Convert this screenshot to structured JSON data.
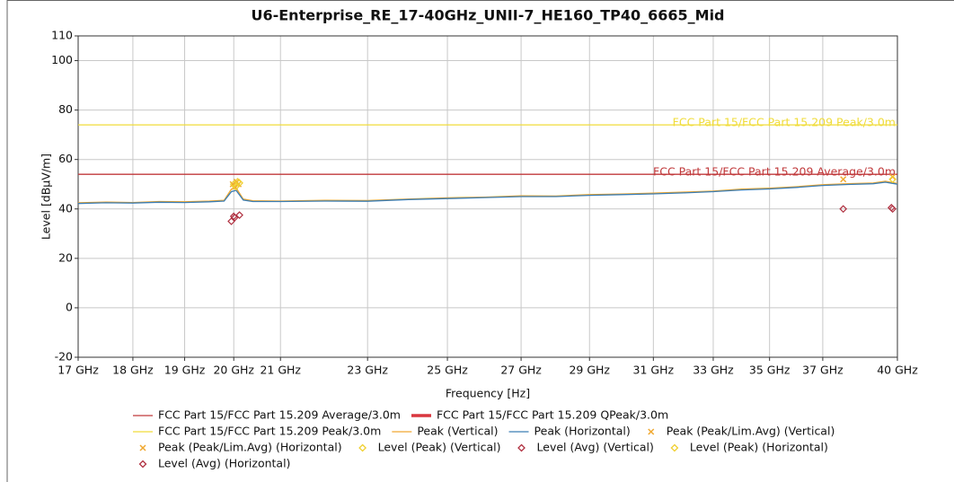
{
  "chart_data": {
    "type": "line",
    "title": "U6-Enterprise_RE_17-40GHz_UNII-7_HE160_TP40_6665_Mid",
    "xlabel": "Frequency [Hz]",
    "ylabel": "Level [dBµV/m]",
    "xscale": "log",
    "grid": true,
    "xlim": [
      17000000000.0,
      40000000000.0
    ],
    "ylim": [
      -20,
      110
    ],
    "xticks": [
      {
        "value": 17000000000.0,
        "label": "17 GHz"
      },
      {
        "value": 18000000000.0,
        "label": "18 GHz"
      },
      {
        "value": 19000000000.0,
        "label": "19 GHz"
      },
      {
        "value": 20000000000.0,
        "label": "20 GHz"
      },
      {
        "value": 21000000000.0,
        "label": "21 GHz"
      },
      {
        "value": 23000000000.0,
        "label": "23 GHz"
      },
      {
        "value": 25000000000.0,
        "label": "25 GHz"
      },
      {
        "value": 27000000000.0,
        "label": "27 GHz"
      },
      {
        "value": 29000000000.0,
        "label": "29 GHz"
      },
      {
        "value": 31000000000.0,
        "label": "31 GHz"
      },
      {
        "value": 33000000000.0,
        "label": "33 GHz"
      },
      {
        "value": 35000000000.0,
        "label": "35 GHz"
      },
      {
        "value": 37000000000.0,
        "label": "37 GHz"
      },
      {
        "value": 40000000000.0,
        "label": "40 GHz"
      }
    ],
    "yticks": [
      -20,
      0,
      20,
      40,
      60,
      80,
      100,
      110
    ],
    "series": [
      {
        "name": "FCC Part 15/FCC Part 15.209 Average/3.0m",
        "color": "#c0393b",
        "style": "limit",
        "x": [
          17000000000.0,
          40000000000.0
        ],
        "values": [
          54,
          54
        ]
      },
      {
        "name": "FCC Part 15/FCC Part 15.209 QPeak/3.0m",
        "color": "#d9363e",
        "style": "thick",
        "x": [],
        "values": []
      },
      {
        "name": "FCC Part 15/FCC Part 15.209 Peak/3.0m",
        "color": "#f0dc3a",
        "style": "limit",
        "x": [
          17000000000.0,
          40000000000.0
        ],
        "values": [
          74,
          74
        ]
      },
      {
        "name": "Peak (Vertical)",
        "color": "#f0a830",
        "style": "line",
        "x": [
          17000000000.0,
          17500000000.0,
          18000000000.0,
          18500000000.0,
          19000000000.0,
          19500000000.0,
          19800000000.0,
          19950000000.0,
          20050000000.0,
          20200000000.0,
          20400000000.0,
          21000000000.0,
          22000000000.0,
          23000000000.0,
          24000000000.0,
          25000000000.0,
          26000000000.0,
          27000000000.0,
          28000000000.0,
          29000000000.0,
          30000000000.0,
          31000000000.0,
          32000000000.0,
          33000000000.0,
          34000000000.0,
          35000000000.0,
          36000000000.0,
          37000000000.0,
          38000000000.0,
          39000000000.0,
          39500000000.0,
          40000000000.0
        ],
        "values": [
          42.5,
          42.8,
          42.6,
          43,
          42.9,
          43.2,
          43.5,
          48,
          48.5,
          44,
          43.3,
          43.2,
          43.5,
          43.4,
          44,
          44.5,
          44.8,
          45.3,
          45.2,
          45.8,
          46,
          46.4,
          46.8,
          47.2,
          48,
          48.4,
          49,
          49.8,
          50.2,
          50.5,
          51.2,
          50.3
        ]
      },
      {
        "name": "Peak (Horizontal)",
        "color": "#3a7db5",
        "style": "line",
        "x": [
          17000000000.0,
          17500000000.0,
          18000000000.0,
          18500000000.0,
          19000000000.0,
          19500000000.0,
          19800000000.0,
          19950000000.0,
          20050000000.0,
          20200000000.0,
          20400000000.0,
          21000000000.0,
          22000000000.0,
          23000000000.0,
          24000000000.0,
          25000000000.0,
          26000000000.0,
          27000000000.0,
          28000000000.0,
          29000000000.0,
          30000000000.0,
          31000000000.0,
          32000000000.0,
          33000000000.0,
          34000000000.0,
          35000000000.0,
          36000000000.0,
          37000000000.0,
          38000000000.0,
          39000000000.0,
          39500000000.0,
          40000000000.0
        ],
        "values": [
          42.2,
          42.5,
          42.4,
          42.7,
          42.6,
          42.9,
          43.2,
          47,
          47.5,
          43.6,
          43,
          43,
          43.2,
          43.1,
          43.8,
          44.2,
          44.6,
          45,
          45,
          45.5,
          45.8,
          46.1,
          46.5,
          47,
          47.7,
          48.1,
          48.7,
          49.5,
          49.9,
          50.2,
          50.8,
          50
        ]
      },
      {
        "name": "Peak (Peak/Lim.Avg) (Vertical)",
        "color": "#f0a830",
        "style": "x",
        "x": [
          19980000000.0,
          20060000000.0,
          37800000000.0,
          39800000000.0
        ],
        "values": [
          50,
          51,
          52,
          53
        ]
      },
      {
        "name": "Peak (Peak/Lim.Avg) (Horizontal)",
        "color": "#f0a830",
        "style": "x",
        "x": [
          20020000000.0,
          20100000000.0
        ],
        "values": [
          49,
          50
        ]
      },
      {
        "name": "Level (Peak) (Vertical)",
        "color": "#f0d030",
        "style": "diamond",
        "x": [
          20000000000.0,
          20080000000.0,
          39800000000.0
        ],
        "values": [
          50,
          51,
          52
        ]
      },
      {
        "name": "Level (Avg) (Vertical)",
        "color": "#b03040",
        "style": "diamond",
        "x": [
          19950000000.0,
          20020000000.0,
          37800000000.0,
          39750000000.0
        ],
        "values": [
          35,
          36.5,
          40,
          40.5
        ]
      },
      {
        "name": "Level (Peak) (Horizontal)",
        "color": "#f0d030",
        "style": "diamond",
        "x": [
          20040000000.0,
          20120000000.0
        ],
        "values": [
          49,
          50.5
        ]
      },
      {
        "name": "Level (Avg) (Horizontal)",
        "color": "#b03040",
        "style": "diamond",
        "x": [
          20000000000.0,
          20120000000.0,
          39800000000.0
        ],
        "values": [
          37,
          37.5,
          40
        ]
      }
    ]
  }
}
